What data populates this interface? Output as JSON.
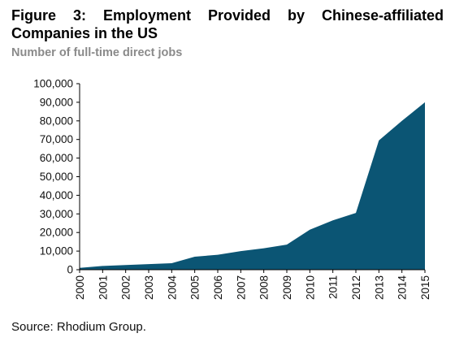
{
  "header": {
    "title": "Figure 3: Employment Provided by Chinese-affiliated Companies in the US",
    "subtitle": "Number of full-time direct jobs"
  },
  "footer": {
    "source": "Source: Rhodium Group."
  },
  "colors": {
    "area_fill": "#0b5574",
    "axis": "#000000"
  },
  "chart_data": {
    "type": "area",
    "title": "Figure 3: Employment Provided by Chinese-affiliated Companies in the US",
    "subtitle": "Number of full-time direct jobs",
    "x": [
      "2000",
      "2001",
      "2002",
      "2003",
      "2004",
      "2005",
      "2006",
      "2007",
      "2008",
      "2009",
      "2010",
      "2011",
      "2012",
      "2013",
      "2014",
      "2015"
    ],
    "values": [
      1000,
      2000,
      2500,
      3000,
      3500,
      7000,
      8000,
      10000,
      11500,
      13500,
      21500,
      26500,
      30500,
      69500,
      80000,
      90000
    ],
    "yticks": [
      "0",
      "10,000",
      "20,000",
      "30,000",
      "40,000",
      "50,000",
      "60,000",
      "70,000",
      "80,000",
      "90,000",
      "100,000"
    ],
    "ylim": [
      0,
      100000
    ],
    "grid": false,
    "legend": "none"
  }
}
